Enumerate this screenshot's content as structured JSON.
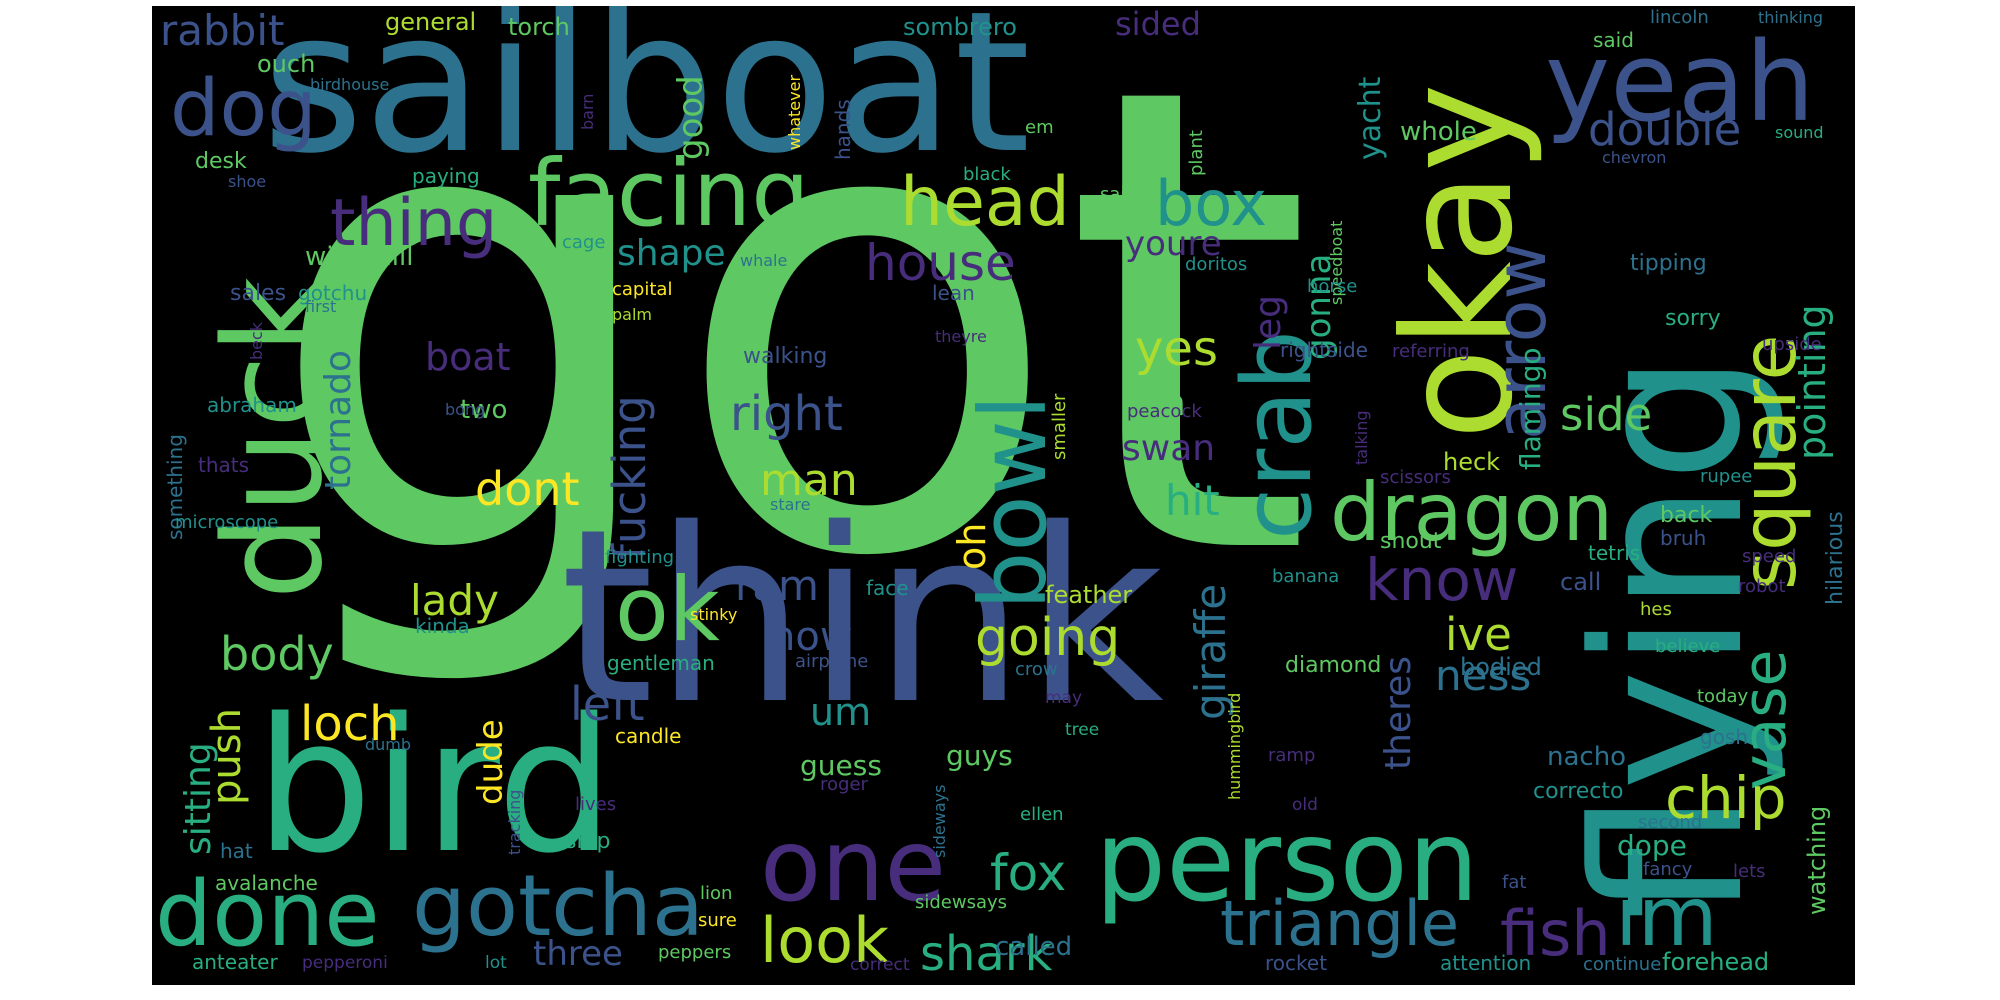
{
  "palette": {
    "background": "#000000",
    "canvas": "#ffffff",
    "viridis": [
      "#440154",
      "#472d7b",
      "#3b528b",
      "#2c728e",
      "#21918c",
      "#28ae80",
      "#5ec962",
      "#addc30",
      "#fde725"
    ]
  },
  "words": [
    {
      "text": "got",
      "color": "#5ec962"
    },
    {
      "text": "think",
      "color": "#3b528b"
    },
    {
      "text": "sailboat",
      "color": "#2c728e"
    },
    {
      "text": "flying",
      "color": "#21918c"
    },
    {
      "text": "okay",
      "color": "#addc30"
    },
    {
      "text": "bird",
      "color": "#28ae80"
    },
    {
      "text": "duck",
      "color": "#5ec962"
    },
    {
      "text": "yeah",
      "color": "#3b528b"
    },
    {
      "text": "person",
      "color": "#28ae80"
    },
    {
      "text": "bowl",
      "color": "#21918c"
    },
    {
      "text": "crab",
      "color": "#21918c"
    },
    {
      "text": "facing",
      "color": "#5ec962"
    },
    {
      "text": "square",
      "color": "#addc30"
    },
    {
      "text": "dragon",
      "color": "#5ec962"
    },
    {
      "text": "done",
      "color": "#28ae80"
    },
    {
      "text": "gotcha",
      "color": "#2c728e"
    },
    {
      "text": "one",
      "color": "#472d7b"
    },
    {
      "text": "im",
      "color": "#21918c"
    },
    {
      "text": "ok",
      "color": "#5ec962"
    },
    {
      "text": "head",
      "color": "#addc30"
    },
    {
      "text": "arrow",
      "color": "#3b528b"
    },
    {
      "text": "box",
      "color": "#21918c"
    },
    {
      "text": "dog",
      "color": "#3b528b"
    },
    {
      "text": "thing",
      "color": "#472d7b"
    },
    {
      "text": "triangle",
      "color": "#2c728e"
    },
    {
      "text": "fish",
      "color": "#472d7b"
    },
    {
      "text": "look",
      "color": "#addc30"
    },
    {
      "text": "vase",
      "color": "#28ae80"
    },
    {
      "text": "chip",
      "color": "#addc30"
    },
    {
      "text": "know",
      "color": "#472d7b"
    },
    {
      "text": "pointing",
      "color": "#28ae80"
    },
    {
      "text": "shark",
      "color": "#28ae80"
    },
    {
      "text": "rabbit",
      "color": "#3b528b"
    },
    {
      "text": "fox",
      "color": "#28ae80"
    },
    {
      "text": "going",
      "color": "#addc30"
    },
    {
      "text": "right",
      "color": "#3b528b"
    },
    {
      "text": "house",
      "color": "#472d7b"
    },
    {
      "text": "yes",
      "color": "#addc30"
    },
    {
      "text": "double",
      "color": "#3b528b"
    },
    {
      "text": "giraffe",
      "color": "#2c728e"
    },
    {
      "text": "fucking",
      "color": "#3b528b"
    },
    {
      "text": "body",
      "color": "#5ec962"
    },
    {
      "text": "left",
      "color": "#3b528b"
    },
    {
      "text": "loch",
      "color": "#fde725"
    },
    {
      "text": "lady",
      "color": "#addc30"
    },
    {
      "text": "man",
      "color": "#addc30"
    },
    {
      "text": "dont",
      "color": "#fde725"
    },
    {
      "text": "side",
      "color": "#5ec962"
    },
    {
      "text": "ive",
      "color": "#addc30"
    },
    {
      "text": "ness",
      "color": "#2c728e"
    },
    {
      "text": "shape",
      "color": "#21918c"
    },
    {
      "text": "tornado",
      "color": "#2c728e"
    },
    {
      "text": "sitting",
      "color": "#28ae80"
    },
    {
      "text": "push",
      "color": "#addc30"
    },
    {
      "text": "ram",
      "color": "#3b528b"
    },
    {
      "text": "now",
      "color": "#3b528b"
    },
    {
      "text": "uh",
      "color": "#5ec962"
    },
    {
      "text": "leg",
      "color": "#472d7b"
    },
    {
      "text": "gonna",
      "color": "#28ae80"
    },
    {
      "text": "hit",
      "color": "#28ae80"
    },
    {
      "text": "swan",
      "color": "#472d7b"
    },
    {
      "text": "oh",
      "color": "#fde725"
    },
    {
      "text": "um",
      "color": "#21918c"
    },
    {
      "text": "dude",
      "color": "#fde725"
    },
    {
      "text": "boat",
      "color": "#472d7b"
    },
    {
      "text": "theres",
      "color": "#3b528b"
    },
    {
      "text": "flamingo",
      "color": "#28ae80"
    },
    {
      "text": "good",
      "color": "#5ec962"
    },
    {
      "text": "youre",
      "color": "#472d7b"
    },
    {
      "text": "three",
      "color": "#3b528b"
    },
    {
      "text": "sided",
      "color": "#472d7b"
    },
    {
      "text": "yacht",
      "color": "#21918c"
    },
    {
      "text": "whole",
      "color": "#5ec962"
    },
    {
      "text": "guess",
      "color": "#5ec962"
    },
    {
      "text": "guys",
      "color": "#5ec962"
    },
    {
      "text": "called",
      "color": "#2c728e"
    },
    {
      "text": "forehead",
      "color": "#28ae80"
    },
    {
      "text": "dope",
      "color": "#28ae80"
    },
    {
      "text": "watching",
      "color": "#5ec962"
    },
    {
      "text": "bodied",
      "color": "#2c728e"
    },
    {
      "text": "nacho",
      "color": "#2c728e"
    },
    {
      "text": "heck",
      "color": "#addc30"
    },
    {
      "text": "hilarious",
      "color": "#2c728e"
    },
    {
      "text": "general",
      "color": "#addc30"
    },
    {
      "text": "torch",
      "color": "#5ec962"
    },
    {
      "text": "sombrero",
      "color": "#21918c"
    },
    {
      "text": "ouch",
      "color": "#5ec962"
    },
    {
      "text": "windmill",
      "color": "#5ec962"
    },
    {
      "text": "sales",
      "color": "#3b528b"
    },
    {
      "text": "gotchu",
      "color": "#21918c"
    },
    {
      "text": "desk",
      "color": "#5ec962"
    },
    {
      "text": "two",
      "color": "#5ec962"
    },
    {
      "text": "abraham",
      "color": "#21918c"
    },
    {
      "text": "thats",
      "color": "#472d7b"
    },
    {
      "text": "something",
      "color": "#2c728e"
    },
    {
      "text": "microscope",
      "color": "#21918c"
    },
    {
      "text": "feather",
      "color": "#addc30"
    },
    {
      "text": "diamond",
      "color": "#5ec962"
    },
    {
      "text": "gentleman",
      "color": "#28ae80"
    },
    {
      "text": "kinda",
      "color": "#21918c"
    },
    {
      "text": "fighting",
      "color": "#21918c"
    },
    {
      "text": "candle",
      "color": "#fde725"
    },
    {
      "text": "hat",
      "color": "#2c728e"
    },
    {
      "text": "avalanche",
      "color": "#5ec962"
    },
    {
      "text": "anteater",
      "color": "#28ae80"
    },
    {
      "text": "pepperoni",
      "color": "#472d7b"
    },
    {
      "text": "lot",
      "color": "#21918c"
    },
    {
      "text": "peppers",
      "color": "#5ec962"
    },
    {
      "text": "correct",
      "color": "#472d7b"
    },
    {
      "text": "rocket",
      "color": "#3b528b"
    },
    {
      "text": "attention",
      "color": "#21918c"
    },
    {
      "text": "continue",
      "color": "#2c728e"
    },
    {
      "text": "ship",
      "color": "#28ae80"
    },
    {
      "text": "lives",
      "color": "#472d7b"
    },
    {
      "text": "roger",
      "color": "#472d7b"
    },
    {
      "text": "ellen",
      "color": "#28ae80"
    },
    {
      "text": "sure",
      "color": "#fde725"
    },
    {
      "text": "lion",
      "color": "#5ec962"
    },
    {
      "text": "sidewsays",
      "color": "#5ec962"
    },
    {
      "text": "sideways",
      "color": "#2c728e"
    },
    {
      "text": "tree",
      "color": "#28ae80"
    },
    {
      "text": "crow",
      "color": "#2c728e"
    },
    {
      "text": "may",
      "color": "#472d7b"
    },
    {
      "text": "airplane",
      "color": "#3b528b"
    },
    {
      "text": "face",
      "color": "#21918c"
    },
    {
      "text": "stinky",
      "color": "#fde725"
    },
    {
      "text": "hummingbird",
      "color": "#addc30"
    },
    {
      "text": "ramp",
      "color": "#472d7b"
    },
    {
      "text": "old",
      "color": "#472d7b"
    },
    {
      "text": "correcto",
      "color": "#21918c"
    },
    {
      "text": "second",
      "color": "#2c728e"
    },
    {
      "text": "fancy",
      "color": "#3b528b"
    },
    {
      "text": "lets",
      "color": "#472d7b"
    },
    {
      "text": "fat",
      "color": "#3b528b"
    },
    {
      "text": "gosh",
      "color": "#2c728e"
    },
    {
      "text": "today",
      "color": "#5ec962"
    },
    {
      "text": "believe",
      "color": "#28ae80"
    },
    {
      "text": "hes",
      "color": "#addc30"
    },
    {
      "text": "call",
      "color": "#3b528b"
    },
    {
      "text": "robot",
      "color": "#472d7b"
    },
    {
      "text": "speed",
      "color": "#472d7b"
    },
    {
      "text": "bruh",
      "color": "#3b528b"
    },
    {
      "text": "tetris",
      "color": "#28ae80"
    },
    {
      "text": "back",
      "color": "#5ec962"
    },
    {
      "text": "snout",
      "color": "#5ec962"
    },
    {
      "text": "rupee",
      "color": "#21918c"
    },
    {
      "text": "banana",
      "color": "#21918c"
    },
    {
      "text": "sorry",
      "color": "#28ae80"
    },
    {
      "text": "upside",
      "color": "#472d7b"
    },
    {
      "text": "tipping",
      "color": "#2c728e"
    },
    {
      "text": "referring",
      "color": "#472d7b"
    },
    {
      "text": "rightside",
      "color": "#3b528b"
    },
    {
      "text": "scissors",
      "color": "#472d7b"
    },
    {
      "text": "talking",
      "color": "#472d7b"
    },
    {
      "text": "peacock",
      "color": "#472d7b"
    },
    {
      "text": "smaller",
      "color": "#addc30"
    },
    {
      "text": "speedboat",
      "color": "#5ec962"
    },
    {
      "text": "horse",
      "color": "#21918c"
    },
    {
      "text": "doritos",
      "color": "#21918c"
    },
    {
      "text": "lean",
      "color": "#3b528b"
    },
    {
      "text": "walking",
      "color": "#3b528b"
    },
    {
      "text": "theyre",
      "color": "#472d7b"
    },
    {
      "text": "stare",
      "color": "#2c728e"
    },
    {
      "text": "capital",
      "color": "#fde725"
    },
    {
      "text": "palm",
      "color": "#addc30"
    },
    {
      "text": "whale",
      "color": "#2c728e"
    },
    {
      "text": "cage",
      "color": "#21918c"
    },
    {
      "text": "first",
      "color": "#2c728e"
    },
    {
      "text": "beck",
      "color": "#472d7b"
    },
    {
      "text": "bong",
      "color": "#3b528b"
    },
    {
      "text": "dumb",
      "color": "#2c728e"
    },
    {
      "text": "tracking",
      "color": "#3b528b"
    },
    {
      "text": "paying",
      "color": "#28ae80"
    },
    {
      "text": "black",
      "color": "#28ae80"
    },
    {
      "text": "sail",
      "color": "#5ec962"
    },
    {
      "text": "plant",
      "color": "#5ec962"
    },
    {
      "text": "em",
      "color": "#5ec962"
    },
    {
      "text": "birdhouse",
      "color": "#2c728e"
    },
    {
      "text": "shoe",
      "color": "#3b528b"
    },
    {
      "text": "barn",
      "color": "#472d7b"
    },
    {
      "text": "whatever",
      "color": "#fde725"
    },
    {
      "text": "hands",
      "color": "#3b528b"
    },
    {
      "text": "said",
      "color": "#5ec962"
    },
    {
      "text": "lincoln",
      "color": "#2c728e"
    },
    {
      "text": "thinking",
      "color": "#2c728e"
    },
    {
      "text": "chevron",
      "color": "#3b528b"
    },
    {
      "text": "sound",
      "color": "#28ae80"
    }
  ]
}
